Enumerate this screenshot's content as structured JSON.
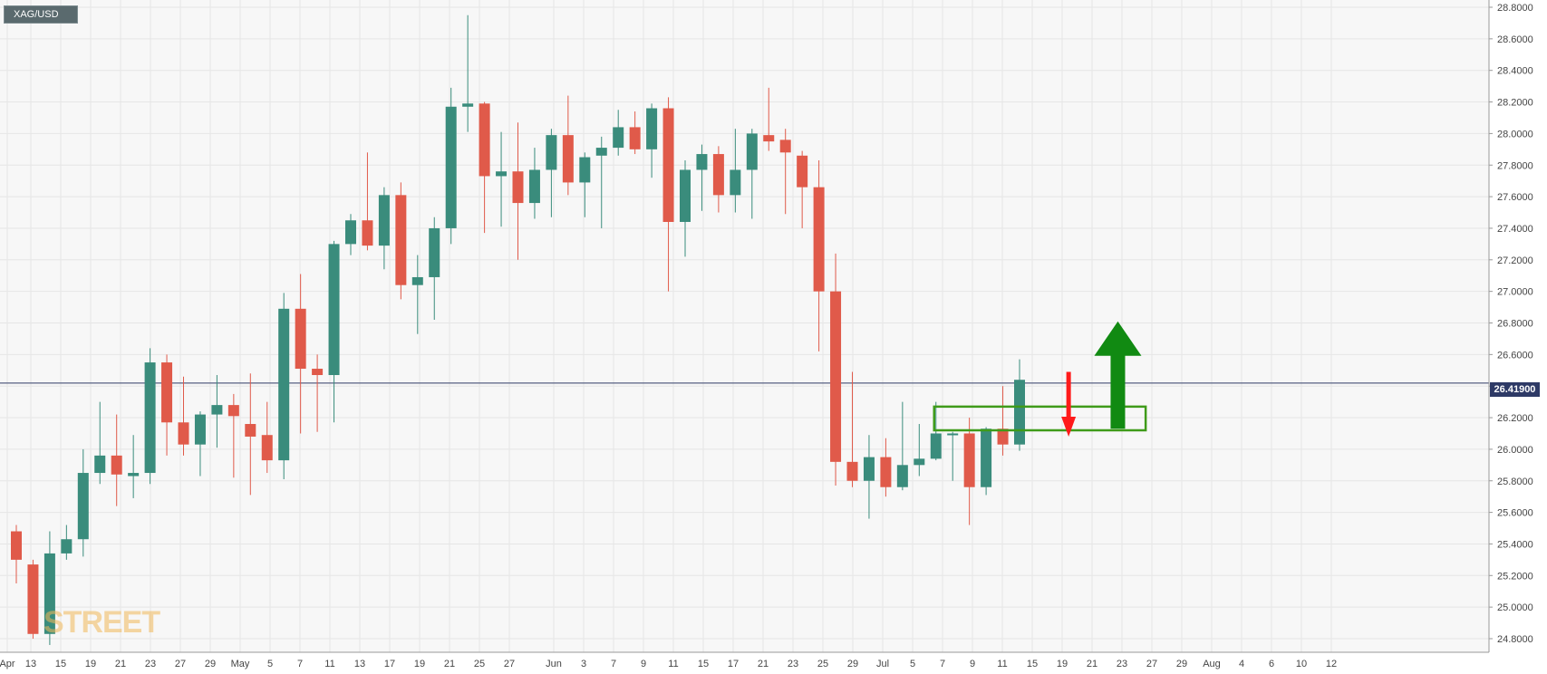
{
  "symbol": "XAG/USD",
  "watermark": "STREET",
  "current_price": "26.41900",
  "colors": {
    "up": "#3a8c7c",
    "down": "#e05a4a",
    "grid": "#e6e6e6",
    "price_line": "#2e3a66",
    "arrow_up": "#118a12",
    "arrow_down": "#ff1a1a",
    "box": "#3f9b1a"
  },
  "chart_data": {
    "type": "candlestick",
    "y_ticks": [
      "24.8000",
      "25.0000",
      "25.2000",
      "25.4000",
      "25.6000",
      "25.8000",
      "26.0000",
      "26.2000",
      "26.4000",
      "26.6000",
      "26.8000",
      "27.0000",
      "27.2000",
      "27.4000",
      "27.6000",
      "27.8000",
      "28.0000",
      "28.2000",
      "28.4000",
      "28.6000",
      "28.8000"
    ],
    "ylim": [
      24.78,
      28.83
    ],
    "x_ticks": [
      "Apr",
      "13",
      "15",
      "19",
      "21",
      "23",
      "27",
      "29",
      "May",
      "5",
      "7",
      "11",
      "13",
      "17",
      "19",
      "21",
      "25",
      "27",
      "Jun",
      "3",
      "7",
      "9",
      "11",
      "15",
      "17",
      "21",
      "23",
      "25",
      "29",
      "Jul",
      "5",
      "7",
      "9",
      "11",
      "15",
      "19",
      "21",
      "23",
      "27",
      "29",
      "Aug",
      "4",
      "6",
      "10",
      "12"
    ],
    "current_price": 26.419,
    "candles": [
      {
        "o": 25.48,
        "h": 25.52,
        "l": 25.15,
        "c": 25.3
      },
      {
        "o": 25.27,
        "h": 25.3,
        "l": 24.8,
        "c": 24.83
      },
      {
        "o": 24.83,
        "h": 25.48,
        "l": 24.76,
        "c": 25.34
      },
      {
        "o": 25.34,
        "h": 25.52,
        "l": 25.3,
        "c": 25.43
      },
      {
        "o": 25.43,
        "h": 26.0,
        "l": 25.32,
        "c": 25.85
      },
      {
        "o": 25.85,
        "h": 26.3,
        "l": 25.78,
        "c": 25.96
      },
      {
        "o": 25.96,
        "h": 26.22,
        "l": 25.64,
        "c": 25.84
      },
      {
        "o": 25.83,
        "h": 26.09,
        "l": 25.69,
        "c": 25.85
      },
      {
        "o": 25.85,
        "h": 26.64,
        "l": 25.78,
        "c": 26.55
      },
      {
        "o": 26.55,
        "h": 26.6,
        "l": 25.96,
        "c": 26.17
      },
      {
        "o": 26.17,
        "h": 26.46,
        "l": 25.96,
        "c": 26.03
      },
      {
        "o": 26.03,
        "h": 26.24,
        "l": 25.83,
        "c": 26.22
      },
      {
        "o": 26.22,
        "h": 26.47,
        "l": 26.01,
        "c": 26.28
      },
      {
        "o": 26.28,
        "h": 26.35,
        "l": 25.82,
        "c": 26.21
      },
      {
        "o": 26.16,
        "h": 26.48,
        "l": 25.71,
        "c": 26.08
      },
      {
        "o": 26.09,
        "h": 26.3,
        "l": 25.85,
        "c": 25.93
      },
      {
        "o": 25.93,
        "h": 26.99,
        "l": 25.81,
        "c": 26.89
      },
      {
        "o": 26.89,
        "h": 27.11,
        "l": 26.1,
        "c": 26.51
      },
      {
        "o": 26.51,
        "h": 26.6,
        "l": 26.11,
        "c": 26.47
      },
      {
        "o": 26.47,
        "h": 27.32,
        "l": 26.17,
        "c": 27.3
      },
      {
        "o": 27.3,
        "h": 27.49,
        "l": 27.23,
        "c": 27.45
      },
      {
        "o": 27.45,
        "h": 27.88,
        "l": 27.26,
        "c": 27.29
      },
      {
        "o": 27.29,
        "h": 27.66,
        "l": 27.14,
        "c": 27.61
      },
      {
        "o": 27.61,
        "h": 27.69,
        "l": 26.95,
        "c": 27.04
      },
      {
        "o": 27.04,
        "h": 27.23,
        "l": 26.73,
        "c": 27.09
      },
      {
        "o": 27.09,
        "h": 27.47,
        "l": 26.82,
        "c": 27.4
      },
      {
        "o": 27.4,
        "h": 28.29,
        "l": 27.3,
        "c": 28.17
      },
      {
        "o": 28.17,
        "h": 28.75,
        "l": 28.01,
        "c": 28.19
      },
      {
        "o": 28.19,
        "h": 28.2,
        "l": 27.37,
        "c": 27.73
      },
      {
        "o": 27.73,
        "h": 28.01,
        "l": 27.41,
        "c": 27.76
      },
      {
        "o": 27.76,
        "h": 28.07,
        "l": 27.2,
        "c": 27.56
      },
      {
        "o": 27.56,
        "h": 27.91,
        "l": 27.46,
        "c": 27.77
      },
      {
        "o": 27.77,
        "h": 28.03,
        "l": 27.47,
        "c": 27.99
      },
      {
        "o": 27.99,
        "h": 28.24,
        "l": 27.61,
        "c": 27.69
      },
      {
        "o": 27.69,
        "h": 27.88,
        "l": 27.47,
        "c": 27.85
      },
      {
        "o": 27.86,
        "h": 27.98,
        "l": 27.4,
        "c": 27.91
      },
      {
        "o": 27.91,
        "h": 28.15,
        "l": 27.86,
        "c": 28.04
      },
      {
        "o": 28.04,
        "h": 28.14,
        "l": 27.87,
        "c": 27.9
      },
      {
        "o": 27.9,
        "h": 28.19,
        "l": 27.72,
        "c": 28.16
      },
      {
        "o": 28.16,
        "h": 28.23,
        "l": 27.0,
        "c": 27.44
      },
      {
        "o": 27.44,
        "h": 27.83,
        "l": 27.22,
        "c": 27.77
      },
      {
        "o": 27.77,
        "h": 27.93,
        "l": 27.51,
        "c": 27.87
      },
      {
        "o": 27.87,
        "h": 27.92,
        "l": 27.5,
        "c": 27.61
      },
      {
        "o": 27.61,
        "h": 28.03,
        "l": 27.5,
        "c": 27.77
      },
      {
        "o": 27.77,
        "h": 28.03,
        "l": 27.46,
        "c": 28.0
      },
      {
        "o": 27.99,
        "h": 28.29,
        "l": 27.89,
        "c": 27.95
      },
      {
        "o": 27.96,
        "h": 28.03,
        "l": 27.49,
        "c": 27.88
      },
      {
        "o": 27.86,
        "h": 27.89,
        "l": 27.4,
        "c": 27.66
      },
      {
        "o": 27.66,
        "h": 27.83,
        "l": 26.62,
        "c": 27.0
      },
      {
        "o": 27.0,
        "h": 27.24,
        "l": 25.77,
        "c": 25.92
      },
      {
        "o": 25.92,
        "h": 26.49,
        "l": 25.76,
        "c": 25.8
      },
      {
        "o": 25.8,
        "h": 26.09,
        "l": 25.56,
        "c": 25.95
      },
      {
        "o": 25.95,
        "h": 26.07,
        "l": 25.7,
        "c": 25.76
      },
      {
        "o": 25.76,
        "h": 26.3,
        "l": 25.74,
        "c": 25.9
      },
      {
        "o": 25.9,
        "h": 26.16,
        "l": 25.83,
        "c": 25.94
      },
      {
        "o": 25.94,
        "h": 26.3,
        "l": 25.93,
        "c": 26.1
      },
      {
        "o": 26.1,
        "h": 26.11,
        "l": 25.8,
        "c": 26.1
      },
      {
        "o": 26.1,
        "h": 26.2,
        "l": 25.52,
        "c": 25.76
      },
      {
        "o": 25.76,
        "h": 26.14,
        "l": 25.71,
        "c": 26.13
      },
      {
        "o": 26.13,
        "h": 26.4,
        "l": 25.96,
        "c": 26.03
      },
      {
        "o": 26.03,
        "h": 26.57,
        "l": 25.99,
        "c": 26.44
      }
    ],
    "annotations": {
      "zone_box": {
        "from_index": 55,
        "to_index": 67,
        "low": 26.12,
        "high": 26.27
      },
      "arrow_up": {
        "index": 65.5,
        "from": 26.13,
        "to": 26.81
      },
      "arrow_down": {
        "index": 62.5,
        "from": 26.49,
        "to": 26.08
      }
    }
  }
}
